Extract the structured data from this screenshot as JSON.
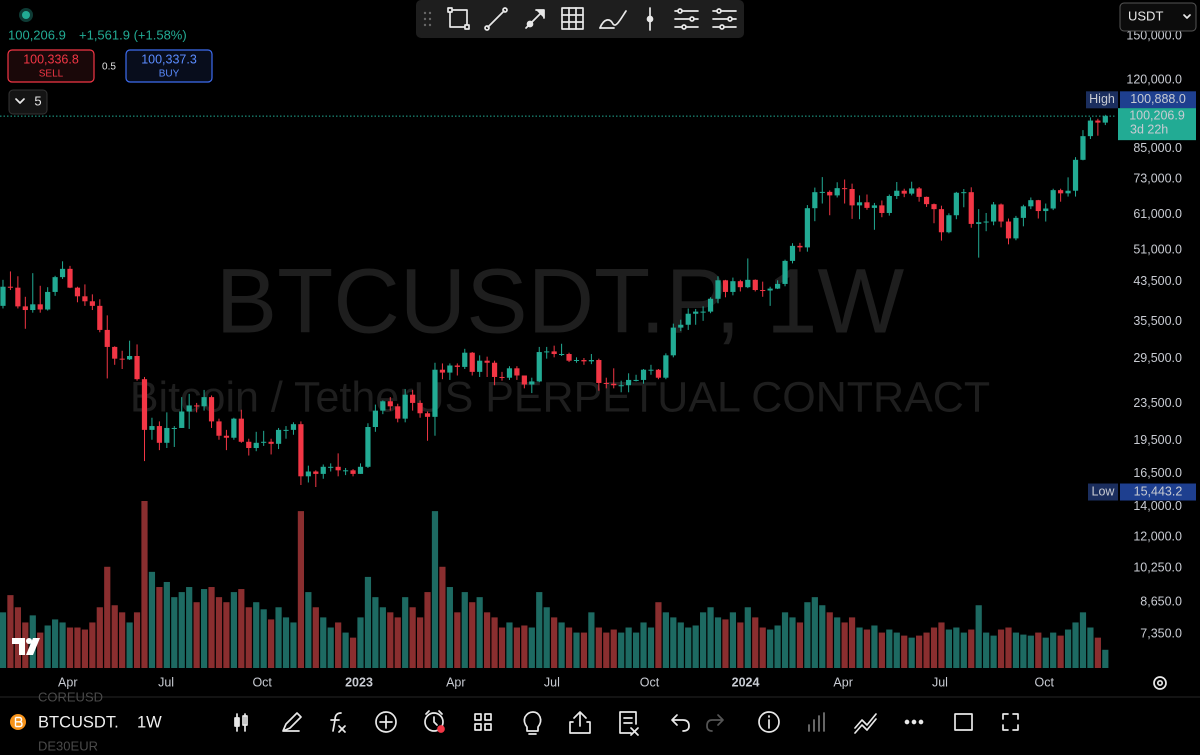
{
  "quote": {
    "change": "+1,561.9 (+1.58%)"
  },
  "order": {
    "sell_price": "100,336.8",
    "sell_label": "SELL",
    "spread": "0.5",
    "buy_price": "100,337.3",
    "buy_label": "BUY"
  },
  "indicators_count": "5",
  "currency": "USDT",
  "symbol_bar": {
    "symbol": "BTCUSDT.",
    "interval": "1W",
    "prev_symbol": "COREUSD",
    "next_symbol": "DE30EUR"
  },
  "chart_data": {
    "type": "candlestick",
    "watermark_title": "BTCUSDT.P, 1W",
    "watermark_subtitle": "Bitcoin / TetherUS PERPETUAL CONTRACT",
    "log_scale": true,
    "grid": false,
    "up_color": "#22ab94",
    "down_color": "#f23645",
    "volume_up_color": "#1d6a62",
    "volume_down_color": "#8a2e2f",
    "ylim": [
      6200,
      180000
    ],
    "yticks": [
      {
        "value": 150000,
        "label": "150,000.0"
      },
      {
        "value": 120000,
        "label": "120,000.0"
      },
      {
        "value": 85000,
        "label": "85,000.0"
      },
      {
        "value": 73000,
        "label": "73,000.0"
      },
      {
        "value": 61000,
        "label": "61,000.0"
      },
      {
        "value": 51000,
        "label": "51,000.0"
      },
      {
        "value": 43500,
        "label": "43,500.0"
      },
      {
        "value": 35500,
        "label": "35,500.0"
      },
      {
        "value": 29500,
        "label": "29,500.0"
      },
      {
        "value": 23500,
        "label": "23,500.0"
      },
      {
        "value": 19500,
        "label": "19,500.0"
      },
      {
        "value": 16500,
        "label": "16,500.0"
      },
      {
        "value": 14000,
        "label": "14,000.0"
      },
      {
        "value": 12000,
        "label": "12,000.0"
      },
      {
        "value": 10250,
        "label": "10,250.0"
      },
      {
        "value": 8650,
        "label": "8,650.0"
      },
      {
        "value": 7350,
        "label": "7,350.0"
      }
    ],
    "xlim": [
      -0.4,
      149.3
    ],
    "xticks": [
      {
        "value": 8.7,
        "label": "Apr"
      },
      {
        "value": 21.9,
        "label": "Jul"
      },
      {
        "value": 34.8,
        "label": "Oct"
      },
      {
        "value": 47.8,
        "label": "2023"
      },
      {
        "value": 60.8,
        "label": "Apr"
      },
      {
        "value": 73.7,
        "label": "Jul"
      },
      {
        "value": 86.8,
        "label": "Oct"
      },
      {
        "value": 99.7,
        "label": "2024"
      },
      {
        "value": 112.8,
        "label": "Apr"
      },
      {
        "value": 125.8,
        "label": "Jul"
      },
      {
        "value": 139.8,
        "label": "Oct"
      }
    ],
    "high": {
      "name": "High",
      "value": 100888,
      "label": "100,888.0"
    },
    "low": {
      "name": "Low",
      "value": 15443.2,
      "label": "15,443.2"
    },
    "last_price": {
      "value": 100206.9,
      "label": "100,206.9",
      "countdown": "3d 22h"
    },
    "candles": [
      [
        38500,
        43900,
        38000,
        42400
      ],
      [
        42400,
        45800,
        41700,
        42200
      ],
      [
        42200,
        44700,
        38000,
        38400
      ],
      [
        38400,
        40300,
        34300,
        37700
      ],
      [
        37700,
        45400,
        37200,
        38800
      ],
      [
        38800,
        42600,
        37200,
        37800
      ],
      [
        37800,
        42300,
        37600,
        41300
      ],
      [
        41300,
        44800,
        40500,
        44500
      ],
      [
        44500,
        48200,
        44100,
        46400
      ],
      [
        46400,
        47100,
        42100,
        42200
      ],
      [
        42200,
        42400,
        39200,
        40400
      ],
      [
        40400,
        42900,
        38500,
        39400
      ],
      [
        39400,
        40800,
        37700,
        38500
      ],
      [
        38500,
        39800,
        33700,
        34100
      ],
      [
        34100,
        36700,
        26700,
        31300
      ],
      [
        31300,
        31400,
        28600,
        29500
      ],
      [
        29500,
        30700,
        28000,
        29400
      ],
      [
        29400,
        32300,
        29300,
        29900
      ],
      [
        29900,
        31700,
        26400,
        26600
      ],
      [
        26600,
        26900,
        17600,
        20600
      ],
      [
        20600,
        21900,
        19600,
        21000
      ],
      [
        21000,
        21500,
        18600,
        19300
      ],
      [
        19300,
        22500,
        18800,
        20800
      ],
      [
        20800,
        21000,
        18900,
        20800
      ],
      [
        20800,
        24300,
        20800,
        22600
      ],
      [
        22600,
        24700,
        20700,
        23300
      ],
      [
        23300,
        23600,
        22500,
        23200
      ],
      [
        23200,
        25200,
        22700,
        24300
      ],
      [
        24300,
        24500,
        20800,
        21500
      ],
      [
        21500,
        21800,
        19600,
        20000
      ],
      [
        20000,
        20600,
        18600,
        19800
      ],
      [
        19800,
        21900,
        19600,
        21800
      ],
      [
        21800,
        22800,
        19300,
        19400
      ],
      [
        19400,
        19700,
        18100,
        18800
      ],
      [
        18800,
        20400,
        18500,
        19300
      ],
      [
        19300,
        20500,
        19000,
        19400
      ],
      [
        19400,
        19700,
        18200,
        19200
      ],
      [
        19200,
        20800,
        18700,
        20600
      ],
      [
        20600,
        21000,
        19700,
        20600
      ],
      [
        20600,
        21400,
        20100,
        21200
      ],
      [
        21200,
        21500,
        15600,
        16300
      ],
      [
        16300,
        17200,
        15800,
        16700
      ],
      [
        16700,
        16800,
        15443.2,
        16500
      ],
      [
        16500,
        17300,
        16100,
        17100
      ],
      [
        17100,
        17400,
        16700,
        17100
      ],
      [
        17100,
        18300,
        16300,
        16800
      ],
      [
        16800,
        17000,
        16400,
        16800
      ],
      [
        16800,
        16900,
        16300,
        16500
      ],
      [
        16500,
        17400,
        16500,
        17100
      ],
      [
        17100,
        21300,
        17000,
        20900
      ],
      [
        20900,
        23400,
        20400,
        22700
      ],
      [
        22700,
        23900,
        22300,
        23800
      ],
      [
        23800,
        24300,
        22700,
        23200
      ],
      [
        23200,
        23500,
        21400,
        21800
      ],
      [
        21800,
        25300,
        21400,
        24600
      ],
      [
        24600,
        25200,
        22700,
        23600
      ],
      [
        23600,
        23900,
        21900,
        22400
      ],
      [
        22400,
        22600,
        19500,
        22000
      ],
      [
        22000,
        28900,
        20000,
        27900
      ],
      [
        27900,
        28800,
        26600,
        27500
      ],
      [
        27500,
        28800,
        26500,
        28500
      ],
      [
        28500,
        28800,
        27100,
        28300
      ],
      [
        28300,
        31000,
        28000,
        30400
      ],
      [
        30400,
        30500,
        27100,
        27600
      ],
      [
        27600,
        30000,
        26900,
        29200
      ],
      [
        29200,
        29800,
        26900,
        28900
      ],
      [
        28900,
        29200,
        25800,
        26900
      ],
      [
        26900,
        27600,
        26400,
        26800
      ],
      [
        26800,
        28400,
        26500,
        28100
      ],
      [
        28100,
        28400,
        26500,
        27100
      ],
      [
        27100,
        27100,
        25400,
        25900
      ],
      [
        25900,
        26800,
        24800,
        26300
      ],
      [
        26300,
        31300,
        26200,
        30500
      ],
      [
        30500,
        31300,
        29500,
        30600
      ],
      [
        30600,
        31500,
        29700,
        30200
      ],
      [
        30200,
        31800,
        29900,
        30200
      ],
      [
        30200,
        30400,
        29000,
        29200
      ],
      [
        29200,
        29700,
        28900,
        29300
      ],
      [
        29300,
        29600,
        28600,
        29100
      ],
      [
        29100,
        30200,
        28700,
        29300
      ],
      [
        29300,
        29500,
        25100,
        26100
      ],
      [
        26100,
        26800,
        25400,
        26000
      ],
      [
        26000,
        28100,
        25400,
        25800
      ],
      [
        25800,
        26400,
        24900,
        25800
      ],
      [
        25800,
        27400,
        24900,
        26500
      ],
      [
        26500,
        27200,
        26300,
        26500
      ],
      [
        26500,
        28000,
        26000,
        27900
      ],
      [
        27900,
        28600,
        27200,
        27900
      ],
      [
        27900,
        28000,
        26600,
        26800
      ],
      [
        26800,
        30300,
        26600,
        30000
      ],
      [
        30000,
        35200,
        29700,
        34500
      ],
      [
        34500,
        35900,
        33900,
        35000
      ],
      [
        35000,
        38000,
        34100,
        37000
      ],
      [
        37000,
        37900,
        35000,
        37400
      ],
      [
        37400,
        38400,
        35700,
        37400
      ],
      [
        37400,
        40200,
        37100,
        39900
      ],
      [
        39900,
        44700,
        39000,
        43800
      ],
      [
        43800,
        43900,
        40200,
        41300
      ],
      [
        41300,
        44400,
        40600,
        43600
      ],
      [
        43600,
        43900,
        41400,
        42300
      ],
      [
        42300,
        48900,
        42100,
        43900
      ],
      [
        43900,
        44000,
        41400,
        41700
      ],
      [
        41700,
        43500,
        40300,
        41600
      ],
      [
        41600,
        42400,
        38500,
        42000
      ],
      [
        42000,
        43800,
        41900,
        43000
      ],
      [
        43000,
        48600,
        42500,
        48300
      ],
      [
        48300,
        52800,
        47700,
        52100
      ],
      [
        52100,
        52900,
        50600,
        51700
      ],
      [
        51700,
        64000,
        50600,
        63000
      ],
      [
        63000,
        69900,
        59000,
        68300
      ],
      [
        68300,
        73700,
        64500,
        68400
      ],
      [
        68400,
        68900,
        60800,
        67200
      ],
      [
        67200,
        71800,
        66500,
        69700
      ],
      [
        69700,
        72800,
        64500,
        69400
      ],
      [
        69400,
        71300,
        59700,
        63900
      ],
      [
        63900,
        67200,
        59600,
        64900
      ],
      [
        64900,
        67500,
        62500,
        63100
      ],
      [
        63100,
        64700,
        56500,
        63900
      ],
      [
        63900,
        65500,
        60200,
        61500
      ],
      [
        61500,
        67500,
        60700,
        67000
      ],
      [
        67000,
        71900,
        66000,
        68800
      ],
      [
        68800,
        69500,
        66600,
        67800
      ],
      [
        67800,
        72000,
        67200,
        69600
      ],
      [
        69600,
        70100,
        65100,
        66700
      ],
      [
        66700,
        66800,
        63400,
        64300
      ],
      [
        64300,
        64500,
        58400,
        62700
      ],
      [
        62700,
        63800,
        53500,
        55800
      ],
      [
        55800,
        61400,
        55500,
        60800
      ],
      [
        60800,
        68400,
        59600,
        68100
      ],
      [
        68100,
        69400,
        63300,
        68300
      ],
      [
        68300,
        70000,
        57100,
        58200
      ],
      [
        58200,
        62700,
        49100,
        58700
      ],
      [
        58700,
        61500,
        56100,
        58900
      ],
      [
        58900,
        65000,
        57800,
        64200
      ],
      [
        64200,
        64500,
        57200,
        58900
      ],
      [
        58900,
        59800,
        52500,
        54100
      ],
      [
        54100,
        60600,
        53600,
        60000
      ],
      [
        60000,
        64100,
        57500,
        63600
      ],
      [
        63600,
        66500,
        62700,
        65600
      ],
      [
        65600,
        65700,
        59800,
        62100
      ],
      [
        62100,
        64500,
        58900,
        62900
      ],
      [
        62900,
        69500,
        62400,
        69000
      ],
      [
        69000,
        69500,
        65100,
        67900
      ],
      [
        67900,
        73600,
        66800,
        68800
      ],
      [
        68800,
        81500,
        66800,
        80400
      ],
      [
        80400,
        93400,
        80200,
        90600
      ],
      [
        90600,
        99600,
        89300,
        98000
      ],
      [
        98000,
        98900,
        90800,
        97000
      ],
      [
        97000,
        100888,
        95800,
        100206.9
      ]
    ],
    "volume": [
      55,
      72,
      60,
      45,
      52,
      35,
      42,
      48,
      45,
      40,
      40,
      38,
      45,
      60,
      100,
      62,
      55,
      45,
      55,
      165,
      95,
      80,
      85,
      70,
      75,
      80,
      65,
      78,
      80,
      70,
      65,
      75,
      78,
      60,
      65,
      58,
      48,
      60,
      50,
      45,
      155,
      75,
      60,
      50,
      40,
      45,
      35,
      30,
      50,
      90,
      70,
      60,
      55,
      50,
      70,
      60,
      50,
      75,
      155,
      100,
      80,
      55,
      75,
      65,
      70,
      55,
      50,
      40,
      45,
      40,
      42,
      40,
      75,
      60,
      50,
      45,
      40,
      35,
      35,
      55,
      40,
      35,
      38,
      35,
      40,
      35,
      45,
      40,
      65,
      55,
      50,
      45,
      40,
      42,
      55,
      60,
      50,
      48,
      55,
      45,
      60,
      50,
      40,
      38,
      42,
      55,
      50,
      45,
      65,
      70,
      62,
      55,
      50,
      45,
      50,
      40,
      38,
      42,
      35,
      38,
      35,
      32,
      30,
      32,
      35,
      40,
      45,
      38,
      40,
      35,
      38,
      62,
      35,
      32,
      38,
      40,
      35,
      33,
      32,
      35,
      30,
      35,
      32,
      38,
      45,
      55,
      40,
      30,
      18
    ]
  }
}
